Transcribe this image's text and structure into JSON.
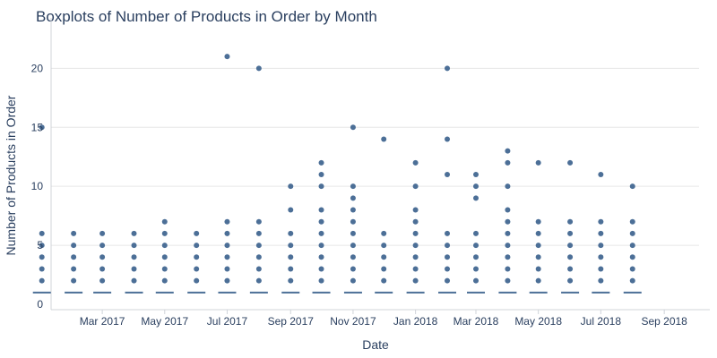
{
  "chart_data": {
    "type": "box",
    "title": "Boxplots of Number of Products in Order by Month",
    "xlabel": "Date",
    "ylabel": "Number of Products in Order",
    "ylim": [
      0,
      22
    ],
    "xlim": [
      "2017-01-10",
      "2018-10-05"
    ],
    "y_ticks": [
      0,
      5,
      10,
      15,
      20
    ],
    "x_ticks": [
      {
        "date": "2017-03-01",
        "label": "Mar 2017"
      },
      {
        "date": "2017-05-01",
        "label": "May 2017"
      },
      {
        "date": "2017-07-01",
        "label": "Jul 2017"
      },
      {
        "date": "2017-09-01",
        "label": "Sep 2017"
      },
      {
        "date": "2017-11-01",
        "label": "Nov 2017"
      },
      {
        "date": "2018-01-01",
        "label": "Jan 2018"
      },
      {
        "date": "2018-03-01",
        "label": "Mar 2018"
      },
      {
        "date": "2018-05-01",
        "label": "May 2018"
      },
      {
        "date": "2018-07-01",
        "label": "Jul 2018"
      },
      {
        "date": "2018-09-01",
        "label": "Sep 2018"
      }
    ],
    "grid": "horizontal",
    "legend": "none",
    "color": "#4c6f97",
    "boxes": [
      {
        "month": "2017-01-01",
        "box_value": 1,
        "outliers": [
          2,
          3,
          4,
          5,
          6,
          15
        ]
      },
      {
        "month": "2017-02-01",
        "box_value": 1,
        "outliers": [
          2,
          3,
          4,
          5,
          6
        ]
      },
      {
        "month": "2017-03-01",
        "box_value": 1,
        "outliers": [
          2,
          3,
          4,
          5,
          6
        ]
      },
      {
        "month": "2017-04-01",
        "box_value": 1,
        "outliers": [
          2,
          3,
          4,
          5,
          6
        ]
      },
      {
        "month": "2017-05-01",
        "box_value": 1,
        "outliers": [
          2,
          3,
          4,
          5,
          6,
          7
        ]
      },
      {
        "month": "2017-06-01",
        "box_value": 1,
        "outliers": [
          2,
          3,
          4,
          5,
          6
        ]
      },
      {
        "month": "2017-07-01",
        "box_value": 1,
        "outliers": [
          2,
          3,
          4,
          5,
          6,
          7,
          21
        ]
      },
      {
        "month": "2017-08-01",
        "box_value": 1,
        "outliers": [
          2,
          3,
          4,
          5,
          6,
          7,
          20
        ]
      },
      {
        "month": "2017-09-01",
        "box_value": 1,
        "outliers": [
          2,
          3,
          4,
          5,
          6,
          8,
          10
        ]
      },
      {
        "month": "2017-10-01",
        "box_value": 1,
        "outliers": [
          2,
          3,
          4,
          5,
          6,
          7,
          8,
          10,
          11,
          12
        ]
      },
      {
        "month": "2017-11-01",
        "box_value": 1,
        "outliers": [
          2,
          3,
          4,
          5,
          6,
          7,
          8,
          9,
          10,
          15
        ]
      },
      {
        "month": "2017-12-01",
        "box_value": 1,
        "outliers": [
          2,
          3,
          4,
          5,
          6,
          14
        ]
      },
      {
        "month": "2018-01-01",
        "box_value": 1,
        "outliers": [
          2,
          3,
          4,
          5,
          6,
          7,
          8,
          10,
          12
        ]
      },
      {
        "month": "2018-02-01",
        "box_value": 1,
        "outliers": [
          2,
          3,
          4,
          5,
          6,
          11,
          14,
          20
        ]
      },
      {
        "month": "2018-03-01",
        "box_value": 1,
        "outliers": [
          2,
          3,
          4,
          5,
          6,
          9,
          10,
          11
        ]
      },
      {
        "month": "2018-04-01",
        "box_value": 1,
        "outliers": [
          2,
          3,
          4,
          5,
          6,
          7,
          8,
          10,
          12,
          13
        ]
      },
      {
        "month": "2018-05-01",
        "box_value": 1,
        "outliers": [
          2,
          3,
          4,
          5,
          6,
          7,
          12
        ]
      },
      {
        "month": "2018-06-01",
        "box_value": 1,
        "outliers": [
          2,
          3,
          4,
          5,
          6,
          7,
          12
        ]
      },
      {
        "month": "2018-07-01",
        "box_value": 1,
        "outliers": [
          2,
          3,
          4,
          5,
          6,
          7,
          11
        ]
      },
      {
        "month": "2018-08-01",
        "box_value": 1,
        "outliers": [
          2,
          3,
          4,
          5,
          6,
          7,
          10
        ]
      }
    ]
  }
}
